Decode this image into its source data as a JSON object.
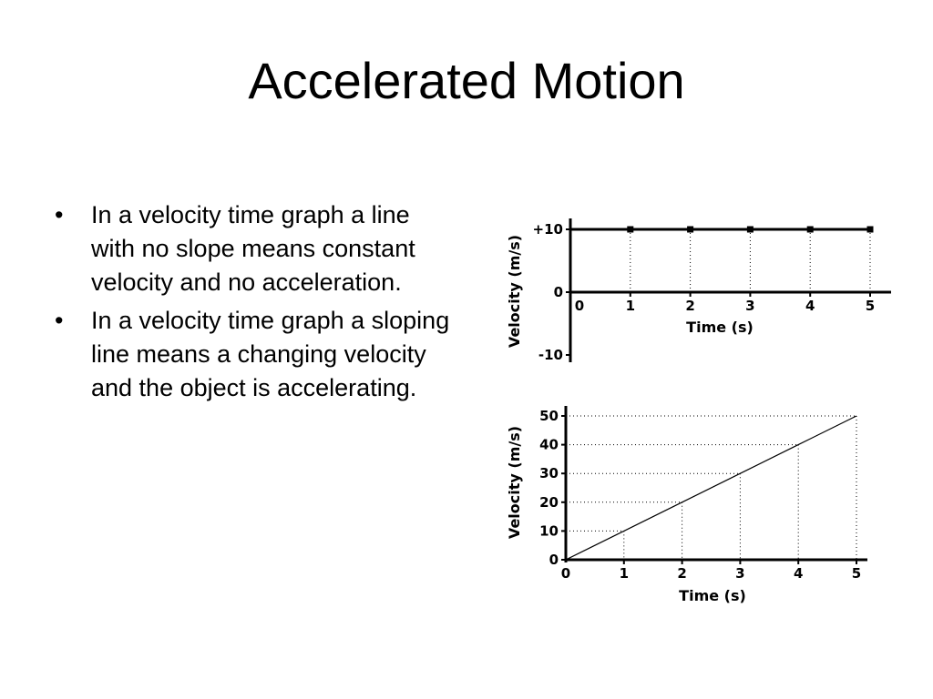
{
  "slide": {
    "title": "Accelerated Motion",
    "bullets": [
      "In a velocity time graph a line with no slope means constant velocity and no acceleration.",
      "In a velocity time graph a sloping line means a changing velocity and the object is accelerating."
    ]
  },
  "chart_data": [
    {
      "type": "line",
      "x": [
        0,
        1,
        2,
        3,
        4,
        5
      ],
      "y": [
        10,
        10,
        10,
        10,
        10,
        10
      ],
      "xlabel": "Time (s)",
      "ylabel": "Velocity (m/s)",
      "x_ticks": [
        "0",
        "1",
        "2",
        "3",
        "4",
        "5"
      ],
      "y_ticks": [
        {
          "value": 10,
          "label": "+10"
        },
        {
          "value": 0,
          "label": "0"
        },
        {
          "value": -10,
          "label": "-10"
        }
      ],
      "xlim": [
        0,
        5
      ],
      "ylim": [
        -10,
        10
      ],
      "markers": true,
      "grid": "vertical dotted drop lines",
      "line_color": "#000000"
    },
    {
      "type": "line",
      "x": [
        0,
        1,
        2,
        3,
        4,
        5
      ],
      "y": [
        0,
        10,
        20,
        30,
        40,
        50
      ],
      "xlabel": "Time (s)",
      "ylabel": "Velocity (m/s)",
      "x_ticks": [
        "0",
        "1",
        "2",
        "3",
        "4",
        "5"
      ],
      "y_ticks": [
        {
          "value": 0,
          "label": "0"
        },
        {
          "value": 10,
          "label": "10"
        },
        {
          "value": 20,
          "label": "20"
        },
        {
          "value": 30,
          "label": "30"
        },
        {
          "value": 40,
          "label": "40"
        },
        {
          "value": 50,
          "label": "50"
        }
      ],
      "xlim": [
        0,
        5
      ],
      "ylim": [
        0,
        50
      ],
      "markers": false,
      "grid": "dotted drop lines to both axes",
      "line_color": "#000000"
    }
  ]
}
